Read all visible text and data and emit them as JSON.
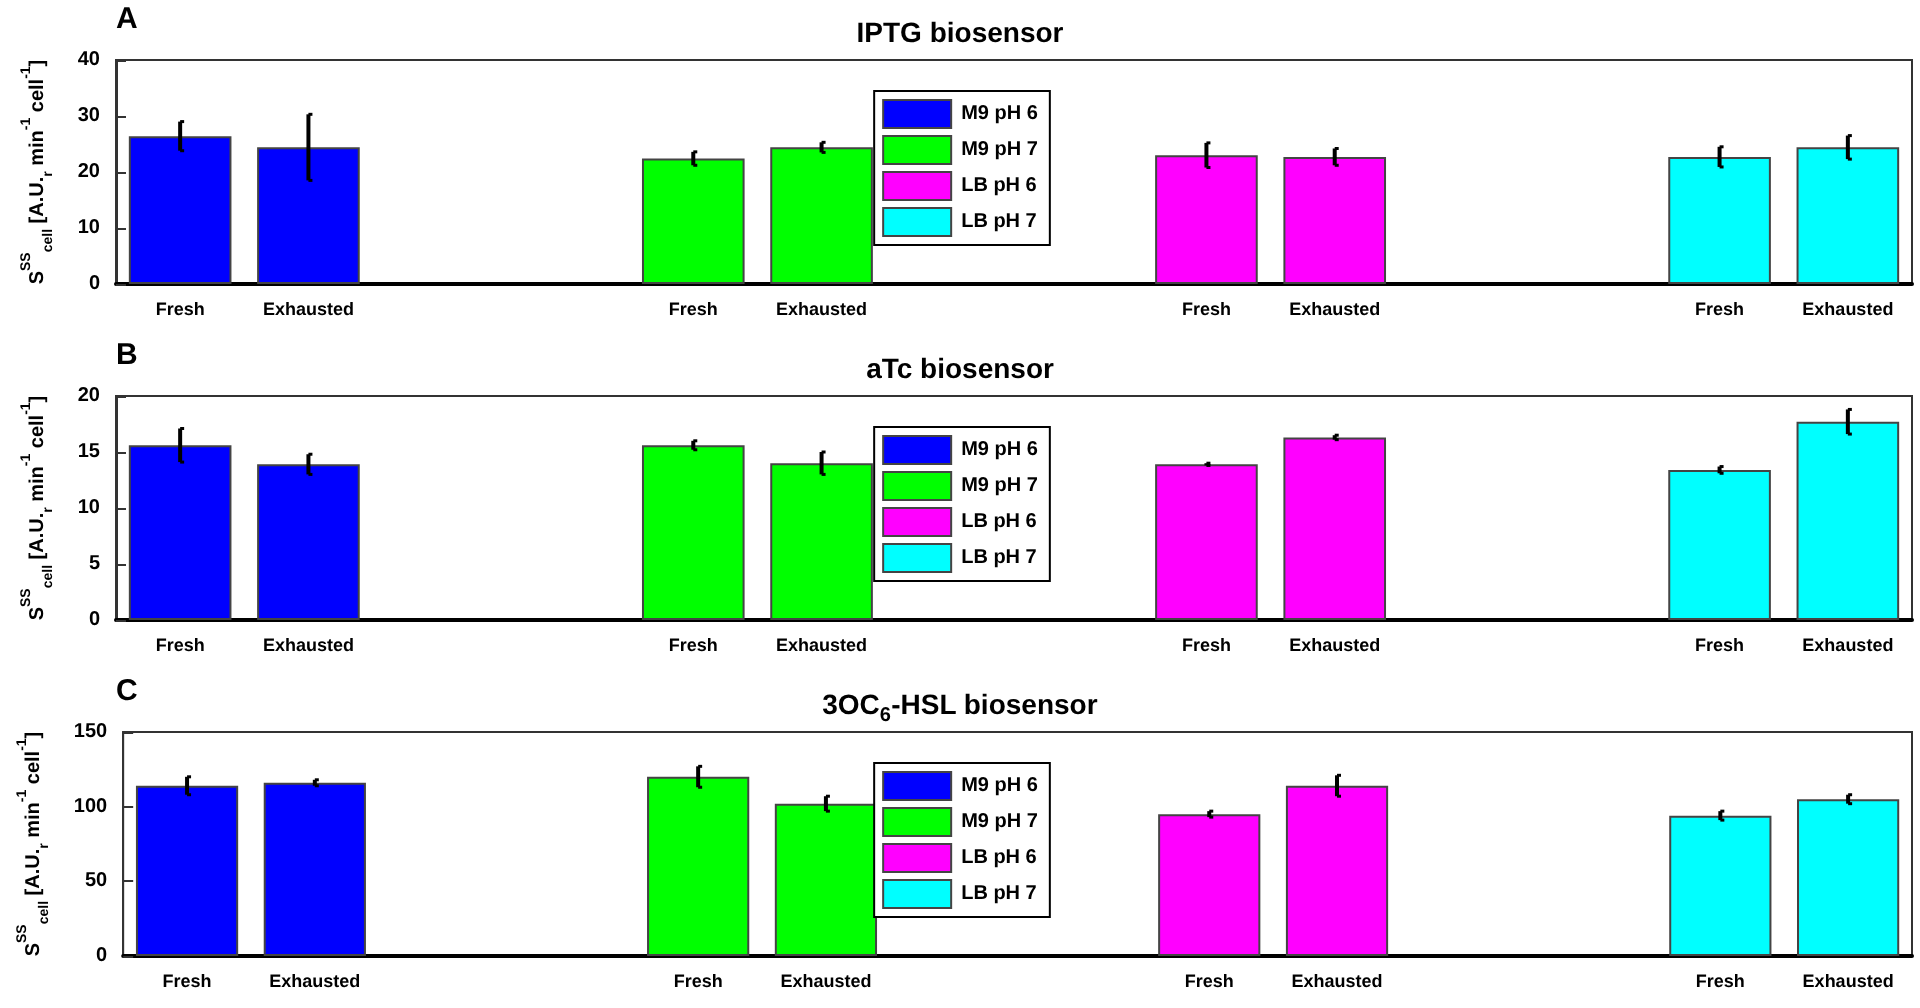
{
  "chart_data": [
    {
      "type": "bar",
      "title": "IPTG biosensor",
      "ylabel": "S$^{SS}$$_{cell}$ [A.U.$_{r}$ min$^{-1}$ cell$^{-1}$]",
      "annotations": [
        "A"
      ],
      "categories": [
        "Fresh",
        "Exhausted",
        null,
        null,
        "Fresh",
        "Exhausted",
        null,
        null,
        "Fresh",
        "Exhausted",
        null,
        null,
        "Fresh",
        "Exhausted"
      ],
      "series": [
        {
          "name": "M9 pH 6",
          "color": "#0000ff",
          "values": [
            26.4,
            24.4,
            null,
            null,
            null,
            null,
            null,
            null,
            null,
            null,
            null,
            null,
            null,
            null
          ],
          "errors": [
            2.6,
            5.9,
            null,
            null,
            null,
            null,
            null,
            null,
            null,
            null,
            null,
            null,
            null,
            null
          ]
        },
        {
          "name": "M9 pH 7",
          "color": "#00ff00",
          "values": [
            null,
            null,
            null,
            null,
            22.4,
            24.4,
            null,
            null,
            null,
            null,
            null,
            null,
            null,
            null
          ],
          "errors": [
            null,
            null,
            null,
            null,
            1.2,
            0.9,
            null,
            null,
            null,
            null,
            null,
            null,
            null,
            null
          ]
        },
        {
          "name": "LB pH 6",
          "color": "#ff00ff",
          "values": [
            null,
            null,
            null,
            null,
            null,
            null,
            null,
            null,
            23.0,
            22.7,
            null,
            null,
            null,
            null
          ],
          "errors": [
            null,
            null,
            null,
            null,
            null,
            null,
            null,
            null,
            2.2,
            1.5,
            null,
            null,
            null,
            null
          ]
        },
        {
          "name": "LB pH 7",
          "color": "#00ffff",
          "values": [
            null,
            null,
            null,
            null,
            null,
            null,
            null,
            null,
            null,
            null,
            null,
            null,
            22.7,
            24.4
          ],
          "errors": [
            null,
            null,
            null,
            null,
            null,
            null,
            null,
            null,
            null,
            null,
            null,
            null,
            1.8,
            2.1
          ]
        }
      ],
      "ylim": [
        0,
        40
      ],
      "yticks": [
        0,
        10,
        20,
        30,
        40
      ],
      "legend": "center"
    },
    {
      "type": "bar",
      "title": "aTc biosensor",
      "ylabel": "S$^{SS}$$_{cell}$ [A.U.$_{r}$ min$^{-1}$ cell$^{-1}$]",
      "annotations": [
        "B"
      ],
      "categories": [
        "Fresh",
        "Exhausted",
        null,
        null,
        "Fresh",
        "Exhausted",
        null,
        null,
        "Fresh",
        "Exhausted",
        null,
        null,
        "Fresh",
        "Exhausted"
      ],
      "series": [
        {
          "name": "M9 pH 6",
          "color": "#0000ff",
          "values": [
            15.6,
            13.9,
            null,
            null,
            null,
            null,
            null,
            null,
            null,
            null,
            null,
            null,
            null,
            null
          ],
          "errors": [
            1.5,
            0.9,
            null,
            null,
            null,
            null,
            null,
            null,
            null,
            null,
            null,
            null,
            null,
            null
          ]
        },
        {
          "name": "M9 pH 7",
          "color": "#00ff00",
          "values": [
            null,
            null,
            null,
            null,
            15.6,
            14.0,
            null,
            null,
            null,
            null,
            null,
            null,
            null,
            null
          ],
          "errors": [
            null,
            null,
            null,
            null,
            0.4,
            1.0,
            null,
            null,
            null,
            null,
            null,
            null,
            null,
            null
          ]
        },
        {
          "name": "LB pH 6",
          "color": "#ff00ff",
          "values": [
            null,
            null,
            null,
            null,
            null,
            null,
            null,
            null,
            13.9,
            16.3,
            null,
            null,
            null,
            null
          ],
          "errors": [
            null,
            null,
            null,
            null,
            null,
            null,
            null,
            null,
            0.1,
            0.2,
            null,
            null,
            null,
            null
          ]
        },
        {
          "name": "LB pH 7",
          "color": "#00ffff",
          "values": [
            null,
            null,
            null,
            null,
            null,
            null,
            null,
            null,
            null,
            null,
            null,
            null,
            13.4,
            17.7
          ],
          "errors": [
            null,
            null,
            null,
            null,
            null,
            null,
            null,
            null,
            null,
            null,
            null,
            null,
            0.3,
            1.1
          ]
        }
      ],
      "ylim": [
        0,
        20
      ],
      "yticks": [
        0,
        5,
        10,
        15,
        20
      ],
      "legend": "center"
    },
    {
      "type": "bar",
      "title": "3OC$_{6}$-HSL biosensor",
      "ylabel": "S$^{SS}$$_{cell}$ [A.U.$_{r}$ min$^{-1}$ cell$^{-1}$]",
      "annotations": [
        "C"
      ],
      "categories": [
        "Fresh",
        "Exhausted",
        null,
        null,
        "Fresh",
        "Exhausted",
        null,
        null,
        "Fresh",
        "Exhausted",
        null,
        null,
        "Fresh",
        "Exhausted"
      ],
      "series": [
        {
          "name": "M9 pH 6",
          "color": "#0000ff",
          "values": [
            114,
            116,
            null,
            null,
            null,
            null,
            null,
            null,
            null,
            null,
            null,
            null,
            null,
            null
          ],
          "errors": [
            6,
            2,
            null,
            null,
            null,
            null,
            null,
            null,
            null,
            null,
            null,
            null,
            null,
            null
          ]
        },
        {
          "name": "M9 pH 7",
          "color": "#00ff00",
          "values": [
            null,
            null,
            null,
            null,
            120,
            102,
            null,
            null,
            null,
            null,
            null,
            null,
            null,
            null
          ],
          "errors": [
            null,
            null,
            null,
            null,
            7,
            5,
            null,
            null,
            null,
            null,
            null,
            null,
            null,
            null
          ]
        },
        {
          "name": "LB pH 6",
          "color": "#ff00ff",
          "values": [
            null,
            null,
            null,
            null,
            null,
            null,
            null,
            null,
            95,
            114,
            null,
            null,
            null,
            null
          ],
          "errors": [
            null,
            null,
            null,
            null,
            null,
            null,
            null,
            null,
            2,
            7,
            null,
            null,
            null,
            null
          ]
        },
        {
          "name": "LB pH 7",
          "color": "#00ffff",
          "values": [
            null,
            null,
            null,
            null,
            null,
            null,
            null,
            null,
            null,
            null,
            null,
            null,
            94,
            105
          ],
          "errors": [
            null,
            null,
            null,
            null,
            null,
            null,
            null,
            null,
            null,
            null,
            null,
            null,
            3,
            3
          ]
        }
      ],
      "ylim": [
        0,
        150
      ],
      "yticks": [
        0,
        50,
        100,
        150
      ],
      "legend": "center"
    }
  ]
}
